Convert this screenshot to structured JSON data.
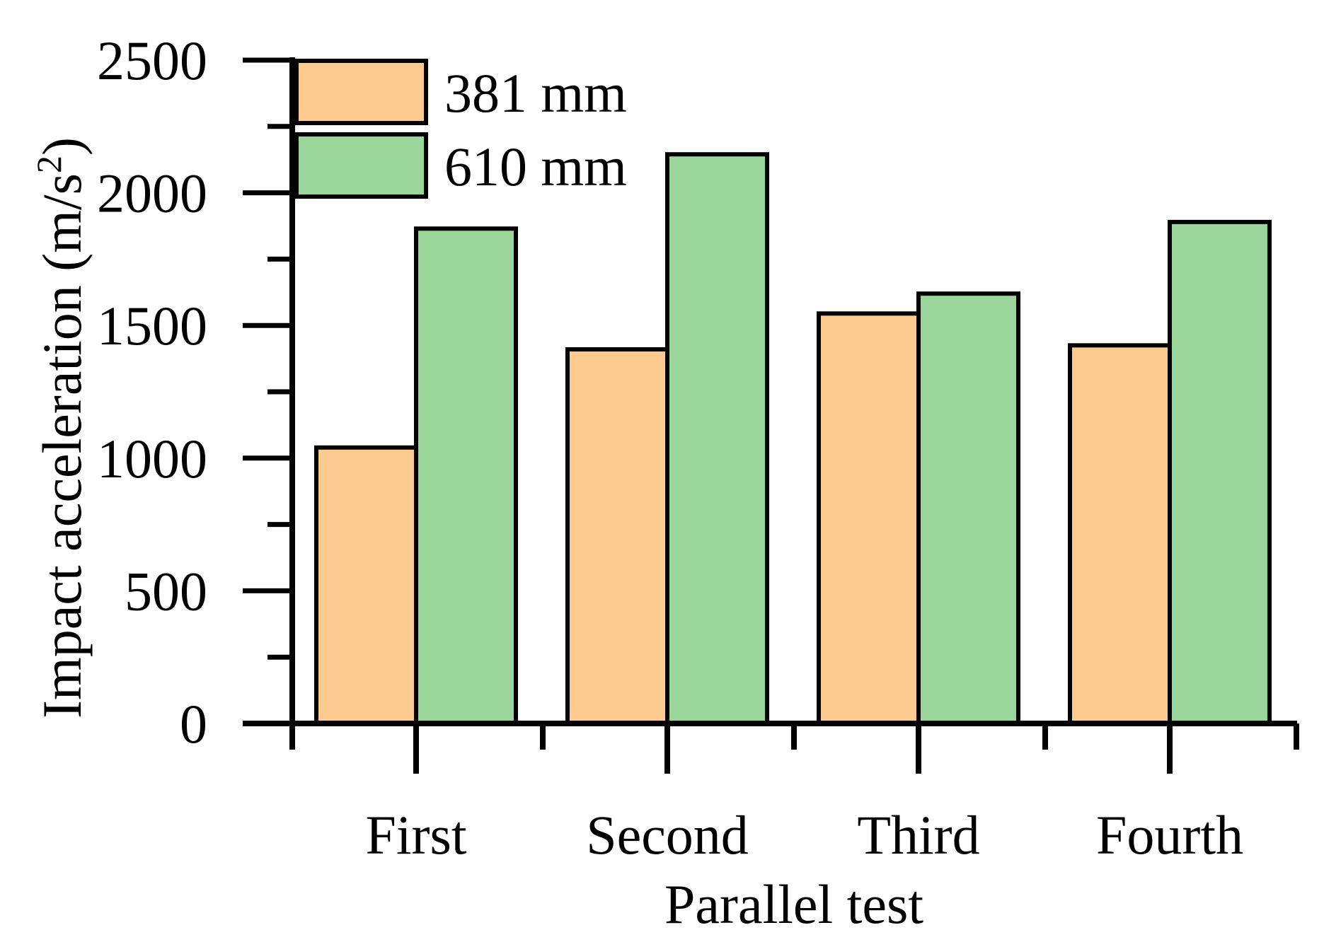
{
  "chart_data": {
    "type": "bar",
    "title": "",
    "xlabel": "Parallel test",
    "ylabel": "Impact acceleration (m/s",
    "ylabel_superscript": "2",
    "ylabel_close": ")",
    "categories": [
      "First",
      "Second",
      "Third",
      "Fourth"
    ],
    "series": [
      {
        "name": "381 mm",
        "color": "#FDCA90",
        "values": [
          1040,
          1410,
          1545,
          1425
        ]
      },
      {
        "name": "610 mm",
        "color": "#9AD59A",
        "values": [
          1865,
          2145,
          1620,
          1890
        ]
      }
    ],
    "ylim": [
      0,
      2500
    ],
    "yticks": [
      "0",
      "500",
      "1000",
      "1500",
      "2000",
      "2500"
    ],
    "grid": false,
    "legend_position": "top-left"
  }
}
